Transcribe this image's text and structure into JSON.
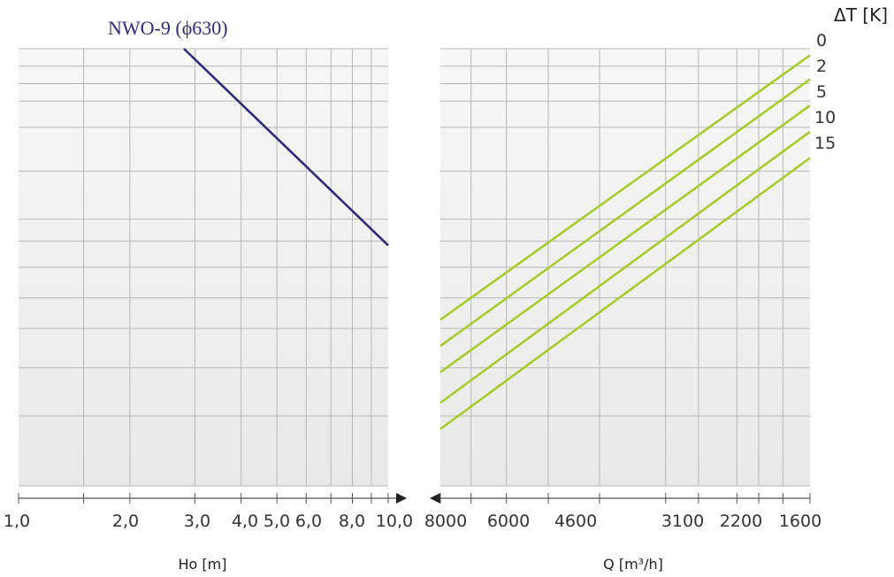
{
  "chart_data": {
    "type": "line",
    "title": "NWO-9 (ϕ630)",
    "colors": {
      "left_series": "#2e2c7a",
      "right_series": "#a6cc2e",
      "grid": "#b7b7b7",
      "axis": "#555555"
    },
    "left_panel": {
      "xlabel": "Ho  [m]",
      "xscale": "log",
      "xlim": [
        1.0,
        10.0
      ],
      "tick_labels": [
        "1,0",
        "2,0",
        "3,0",
        "4,0",
        "5,0",
        "6,0",
        "8,0",
        "10,0"
      ],
      "series": [
        {
          "x": [
            2.8,
            10.0
          ],
          "y": [
            1.0,
            0.55
          ]
        }
      ]
    },
    "right_panel": {
      "xlabel": "Q [m³/h]",
      "xscale": "log",
      "x_direction": "reversed",
      "xlim": [
        8000,
        1600
      ],
      "tick_labels": [
        "8000",
        "6000",
        "4600",
        "3100",
        "2200",
        "1600"
      ],
      "legend_title": "ΔT [K]",
      "series": [
        {
          "name": "0",
          "x": [
            8000,
            1600
          ],
          "y": [
            0.38,
            0.985
          ]
        },
        {
          "name": "2",
          "x": [
            8000,
            1600
          ],
          "y": [
            0.32,
            0.93
          ]
        },
        {
          "name": "5",
          "x": [
            8000,
            1600
          ],
          "y": [
            0.26,
            0.87
          ]
        },
        {
          "name": "10",
          "x": [
            8000,
            1600
          ],
          "y": [
            0.19,
            0.81
          ]
        },
        {
          "name": "15",
          "x": [
            8000,
            1600
          ],
          "y": [
            0.13,
            0.75
          ]
        }
      ]
    },
    "grid": true
  }
}
